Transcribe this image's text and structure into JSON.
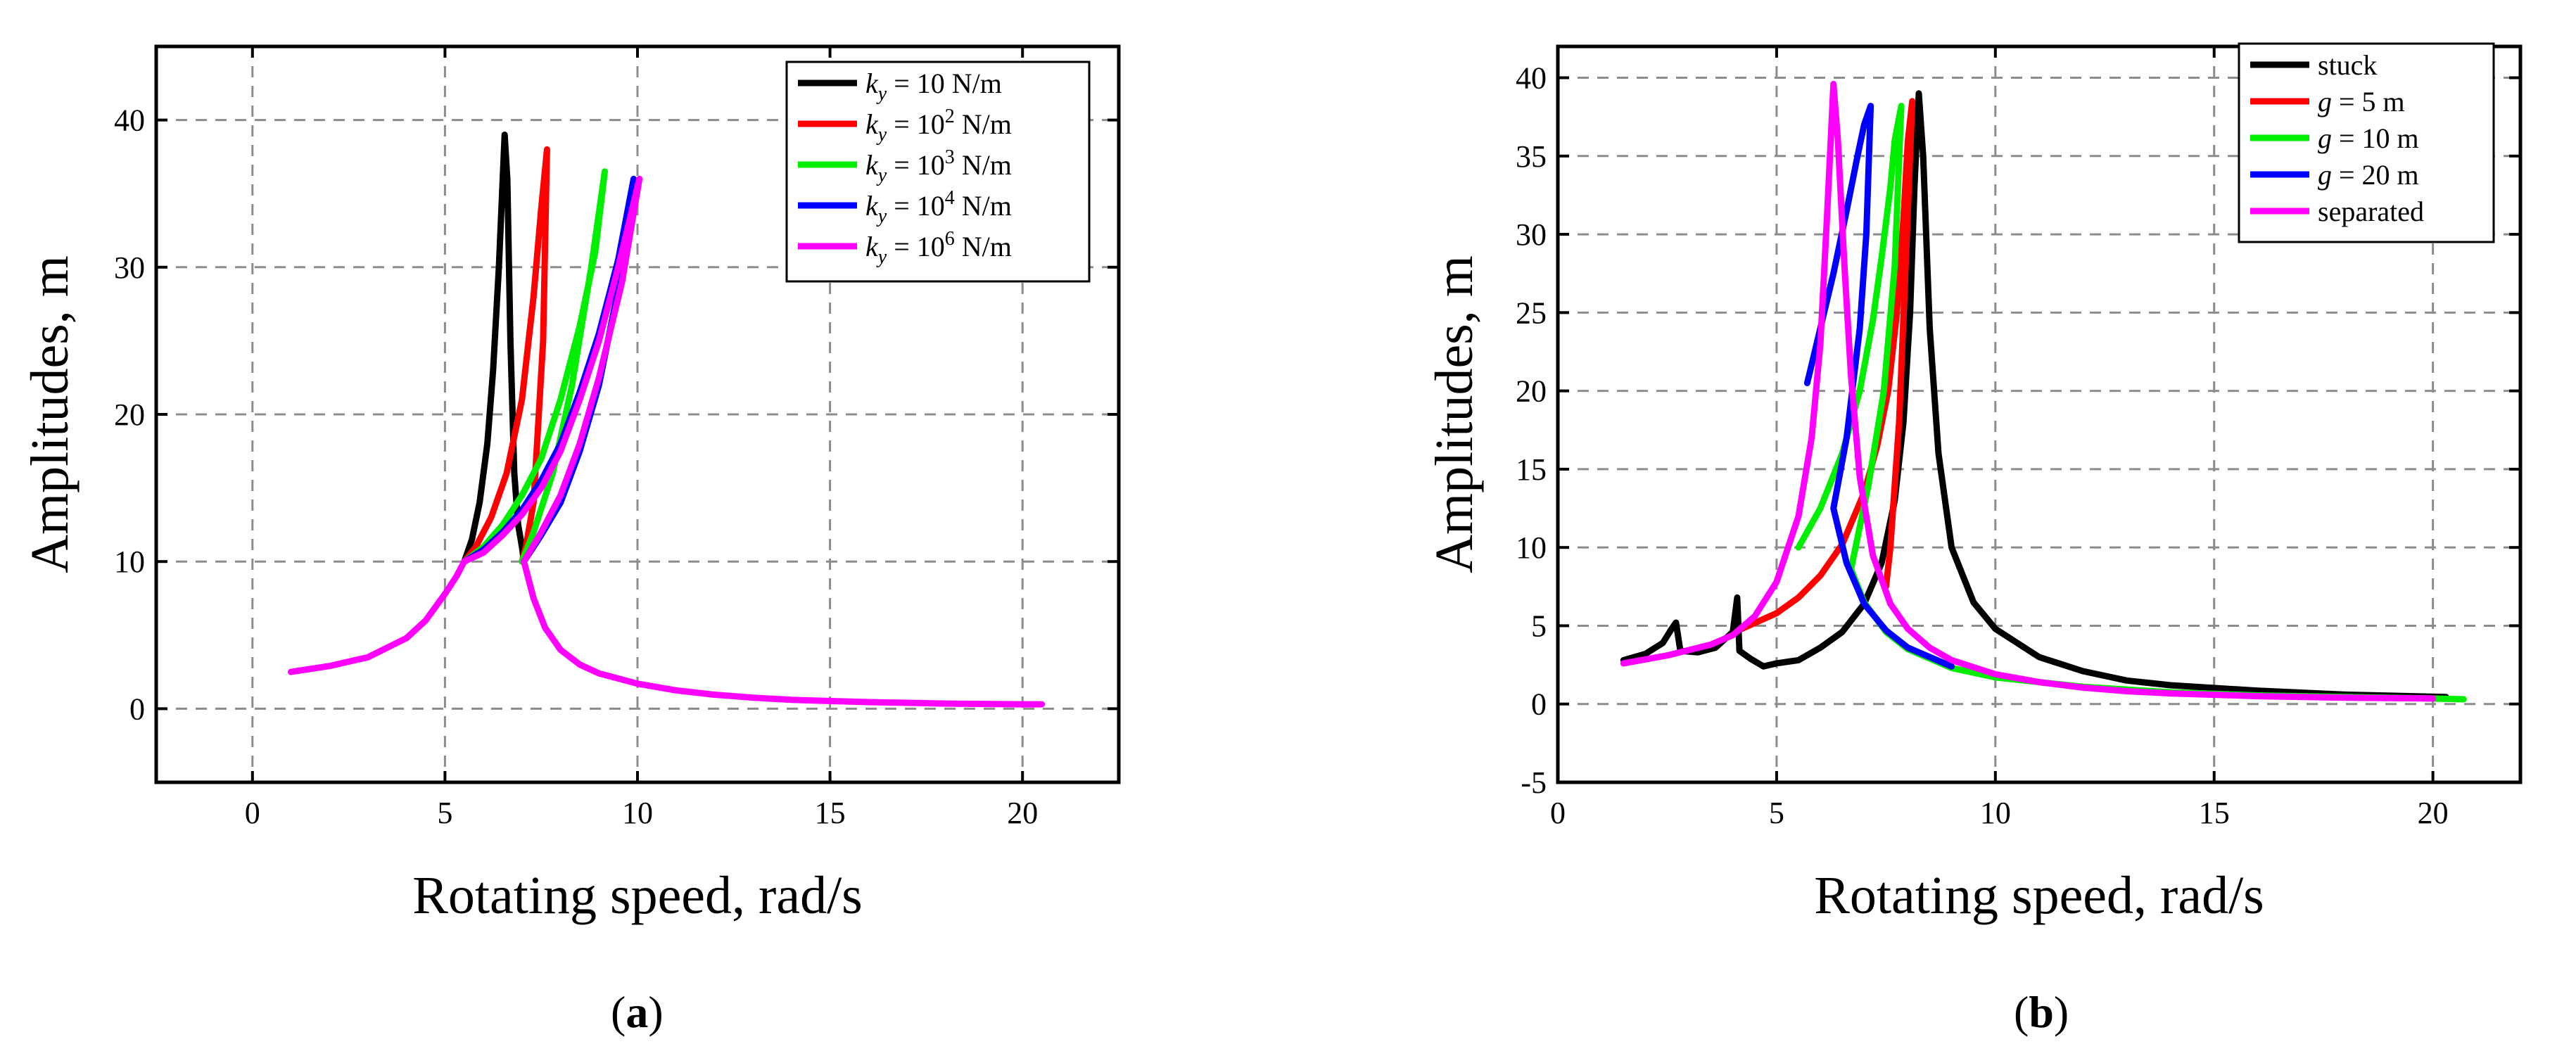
{
  "chart_data": [
    {
      "type": "line",
      "panel_label": "a",
      "xlabel": "Rotating speed, rad/s",
      "ylabel": "Amplitudes, m",
      "xlim": [
        -2.5,
        22.5
      ],
      "ylim": [
        -5,
        45
      ],
      "xticks": [
        0,
        5,
        10,
        15,
        20
      ],
      "yticks": [
        0,
        10,
        20,
        30,
        40
      ],
      "grid": true,
      "legend_position": "top-right",
      "series": [
        {
          "name": "k_y = 10 N/m",
          "legend": {
            "sym": "k",
            "sub": "y",
            "pre": " = 10",
            "sup": "",
            "post": " N/m"
          },
          "color": "#000000",
          "x": [
            5.5,
            5.7,
            5.9,
            6.1,
            6.25,
            6.4,
            6.55,
            6.62,
            6.7,
            6.8,
            6.9,
            7.0,
            7.05
          ],
          "y": [
            10.0,
            11.5,
            14.0,
            18.0,
            23.0,
            30.0,
            39.0,
            36.0,
            25.0,
            16.0,
            12.5,
            11.0,
            10.0
          ]
        },
        {
          "name": "k_y = 10^2 N/m",
          "legend": {
            "sym": "k",
            "sub": "y",
            "pre": " = 10",
            "sup": "2",
            "post": " N/m"
          },
          "color": "#ff0000",
          "x": [
            5.5,
            5.8,
            6.2,
            6.6,
            7.0,
            7.3,
            7.5,
            7.65,
            7.55,
            7.3,
            7.1,
            7.0
          ],
          "y": [
            10.0,
            11.0,
            13.0,
            16.0,
            21.0,
            28.0,
            34.0,
            38.0,
            25.0,
            14.0,
            11.0,
            10.0
          ]
        },
        {
          "name": "k_y = 10^3 N/m",
          "legend": {
            "sym": "k",
            "sub": "y",
            "pre": " = 10",
            "sup": "3",
            "post": " N/m"
          },
          "color": "#00ee00",
          "x": [
            5.5,
            6.0,
            6.5,
            7.0,
            7.5,
            8.0,
            8.5,
            8.9,
            9.15,
            8.8,
            8.3,
            7.8,
            7.3,
            7.0
          ],
          "y": [
            10.0,
            11.0,
            12.5,
            14.5,
            17.0,
            21.0,
            26.0,
            31.0,
            36.5,
            30.0,
            22.0,
            16.0,
            12.0,
            10.0
          ]
        },
        {
          "name": "k_y = 10^4 N/m",
          "legend": {
            "sym": "k",
            "sub": "y",
            "pre": " = 10",
            "sup": "4",
            "post": " N/m"
          },
          "color": "#0000ff",
          "x": [
            5.5,
            6.0,
            6.5,
            7.0,
            7.5,
            8.0,
            8.5,
            9.0,
            9.5,
            9.9,
            9.5,
            9.0,
            8.5,
            8.0,
            7.5,
            7.05
          ],
          "y": [
            10.0,
            10.8,
            12.0,
            13.5,
            15.5,
            18.0,
            21.5,
            25.5,
            30.5,
            36.0,
            28.5,
            22.0,
            17.5,
            14.0,
            11.8,
            10.0
          ]
        },
        {
          "name": "k_y = 10^6 N/m",
          "legend": {
            "sym": "k",
            "sub": "y",
            "pre": " = 10",
            "sup": "6",
            "post": " N/m"
          },
          "color": "#ff00ff",
          "x": [
            1.0,
            2.0,
            3.0,
            4.0,
            4.5,
            5.0,
            5.3,
            5.5,
            6.0,
            6.5,
            7.0,
            7.5,
            8.0,
            8.5,
            9.0,
            9.5,
            10.05,
            9.6,
            9.0,
            8.5,
            8.0,
            7.5,
            7.05,
            7.3,
            7.6,
            8.0,
            8.5,
            9.0,
            10.0,
            11.0,
            12.0,
            13.0,
            14.0,
            16.0,
            18.0,
            20.0,
            20.5
          ],
          "y": [
            2.5,
            2.9,
            3.5,
            4.8,
            6.0,
            7.8,
            9.0,
            10.0,
            10.6,
            11.8,
            13.2,
            15.0,
            17.5,
            21.0,
            25.0,
            30.0,
            36.0,
            29.0,
            22.5,
            18.0,
            14.5,
            12.0,
            10.0,
            7.5,
            5.5,
            4.0,
            3.0,
            2.4,
            1.7,
            1.25,
            0.95,
            0.75,
            0.6,
            0.45,
            0.35,
            0.3,
            0.3
          ]
        }
      ]
    },
    {
      "type": "line",
      "panel_label": "b",
      "xlabel": "Rotating speed, rad/s",
      "ylabel": "Amplitudes, m",
      "xlim": [
        0,
        22
      ],
      "ylim": [
        -5,
        42
      ],
      "xticks": [
        0,
        5,
        10,
        15,
        20
      ],
      "yticks": [
        -5,
        0,
        5,
        10,
        15,
        20,
        25,
        30,
        35,
        40
      ],
      "grid": true,
      "legend_position": "top-right",
      "series": [
        {
          "name": "stuck",
          "legend": {
            "text": "stuck"
          },
          "color": "#000000",
          "x": [
            1.5,
            2.0,
            2.4,
            2.6,
            2.7,
            2.8,
            3.2,
            3.6,
            4.0,
            4.1,
            4.15,
            4.4,
            4.7,
            5.0,
            5.5,
            6.0,
            6.5,
            7.0,
            7.4,
            7.7,
            7.9,
            8.05,
            8.15,
            8.25,
            8.35,
            8.5,
            8.7,
            9.0,
            9.5,
            10.0,
            11.0,
            12.0,
            13.0,
            14.0,
            16.0,
            18.0,
            20.3
          ],
          "y": [
            2.8,
            3.2,
            3.9,
            4.8,
            5.2,
            3.4,
            3.3,
            3.6,
            4.6,
            6.8,
            3.4,
            2.9,
            2.4,
            2.6,
            2.8,
            3.6,
            4.6,
            6.4,
            9.0,
            13.0,
            18.0,
            25.0,
            33.0,
            39.0,
            35.0,
            24.0,
            16.0,
            10.0,
            6.5,
            4.8,
            3.0,
            2.1,
            1.5,
            1.2,
            0.85,
            0.6,
            0.45
          ]
        },
        {
          "name": "g = 5 m",
          "legend": {
            "sym": "g",
            "text": " = 5 m"
          },
          "color": "#ff0000",
          "x": [
            4.2,
            5.0,
            5.5,
            6.0,
            6.5,
            7.0,
            7.3,
            7.55,
            7.75,
            7.9,
            8.0,
            8.1,
            7.95,
            7.8,
            7.6,
            7.5
          ],
          "y": [
            4.8,
            5.8,
            6.8,
            8.2,
            10.2,
            13.5,
            16.5,
            20.0,
            25.0,
            31.0,
            36.0,
            38.5,
            28.0,
            18.0,
            10.0,
            7.5
          ]
        },
        {
          "name": "g = 10 m",
          "legend": {
            "sym": "g",
            "text": " = 10 m"
          },
          "color": "#00ee00",
          "x": [
            5.5,
            6.0,
            6.5,
            6.9,
            7.2,
            7.4,
            7.6,
            7.7,
            7.85,
            7.7,
            7.45,
            7.1,
            6.7,
            7.0,
            7.5,
            8.0,
            9.0,
            10.0,
            12.0,
            14.0,
            16.0,
            18.0,
            20.0,
            20.7
          ],
          "y": [
            10.0,
            12.5,
            16.0,
            20.0,
            24.5,
            28.5,
            33.0,
            36.0,
            38.2,
            28.0,
            20.0,
            14.0,
            8.6,
            6.5,
            4.6,
            3.5,
            2.3,
            1.7,
            1.1,
            0.75,
            0.55,
            0.45,
            0.35,
            0.3
          ]
        },
        {
          "name": "g = 20 m",
          "legend": {
            "sym": "g",
            "text": " = 20 m"
          },
          "color": "#0000ff",
          "x": [
            5.7,
            6.0,
            6.3,
            6.6,
            6.85,
            7.0,
            7.15,
            7.05,
            6.9,
            6.6,
            6.3,
            6.6,
            7.0,
            7.5,
            8.0,
            9.0
          ],
          "y": [
            20.5,
            24.0,
            27.5,
            31.5,
            35.0,
            37.0,
            38.2,
            30.0,
            24.0,
            17.0,
            12.5,
            9.0,
            6.4,
            4.7,
            3.6,
            2.4
          ]
        },
        {
          "name": "separated",
          "legend": {
            "text": "separated"
          },
          "color": "#ff00ff",
          "x": [
            1.5,
            2.5,
            3.5,
            4.0,
            4.5,
            5.0,
            5.5,
            5.8,
            6.0,
            6.15,
            6.3,
            6.4,
            6.55,
            6.7,
            6.9,
            7.2,
            7.6,
            8.0,
            8.5,
            9.0,
            10.0,
            11.0,
            12.0,
            13.0,
            14.0,
            16.0,
            18.0,
            20.0
          ],
          "y": [
            2.6,
            3.1,
            3.8,
            4.4,
            5.6,
            7.8,
            12.0,
            17.0,
            23.0,
            31.0,
            39.6,
            36.0,
            28.0,
            21.0,
            14.5,
            9.5,
            6.4,
            4.8,
            3.6,
            2.8,
            1.9,
            1.4,
            1.05,
            0.82,
            0.68,
            0.5,
            0.4,
            0.35
          ]
        }
      ]
    }
  ]
}
